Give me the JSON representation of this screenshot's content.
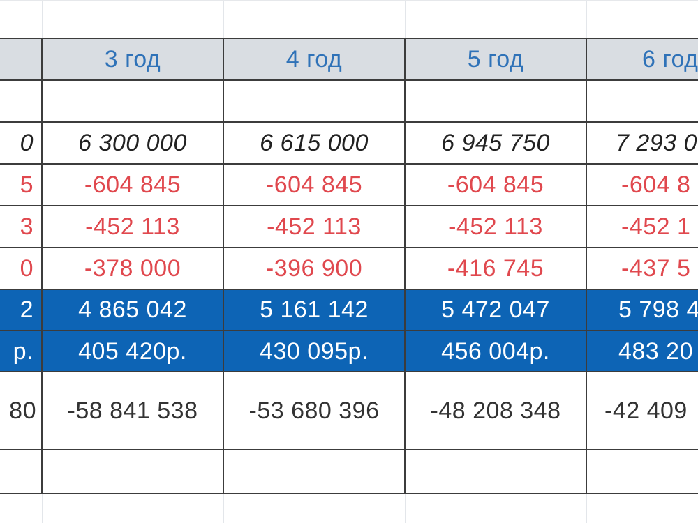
{
  "colors": {
    "header_bg": "#d9dde2",
    "header_text": "#2f72b8",
    "negative_text": "#e0484e",
    "highlight_bg": "#0d64b5",
    "highlight_text": "#ffffff"
  },
  "columns": [
    {
      "header": "",
      "values": [
        "",
        "0",
        "5",
        "3",
        "0",
        "2",
        "р.",
        "80",
        ""
      ]
    },
    {
      "header": "3 год",
      "values": [
        "",
        "6 300 000",
        "-604 845",
        "-452 113",
        "-378 000",
        "4 865 042",
        "405 420р.",
        "-58 841 538",
        ""
      ]
    },
    {
      "header": "4 год",
      "values": [
        "",
        "6 615 000",
        "-604 845",
        "-452 113",
        "-396 900",
        "5 161 142",
        "430 095р.",
        "-53 680 396",
        ""
      ]
    },
    {
      "header": "5 год",
      "values": [
        "",
        "6 945 750",
        "-604 845",
        "-452 113",
        "-416 745",
        "5 472 047",
        "456 004р.",
        "-48 208 348",
        ""
      ]
    },
    {
      "header": "6 год",
      "values": [
        "",
        "7 293 0",
        "-604 8",
        "-452 1",
        "-437 5",
        "5 798 4",
        "483 20",
        "-42 409",
        ""
      ]
    }
  ]
}
